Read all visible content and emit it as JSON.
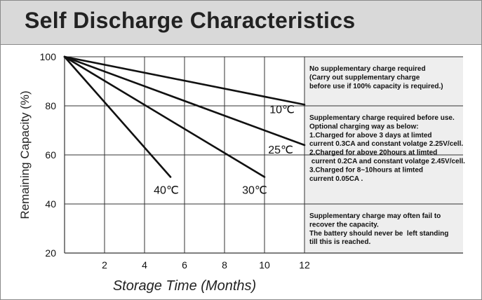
{
  "title": "Self Discharge Characteristics",
  "chart_data": {
    "type": "line",
    "xlabel": "Storage Time (Months)",
    "ylabel": "Remaining Capacity (%)",
    "xlim": [
      0,
      12
    ],
    "ylim": [
      20,
      100
    ],
    "x_ticks": [
      "2",
      "4",
      "6",
      "8",
      "10",
      "12"
    ],
    "y_ticks": [
      "100",
      "80",
      "60",
      "40",
      "20"
    ],
    "grid": true,
    "series": [
      {
        "name": "10℃",
        "x": [
          0,
          12
        ],
        "y": [
          100,
          80.5
        ]
      },
      {
        "name": "25℃",
        "x": [
          0,
          12
        ],
        "y": [
          100,
          64
        ]
      },
      {
        "name": "30℃",
        "x": [
          0,
          10
        ],
        "y": [
          100,
          51
        ]
      },
      {
        "name": "40℃",
        "x": [
          0,
          5.3
        ],
        "y": [
          100,
          51
        ]
      }
    ],
    "annotations": [
      {
        "band": [
          80,
          100
        ],
        "lines": [
          "No supplementary charge required",
          "(Carry out supplementary charge",
          "before use if 100% capacity is required.)"
        ]
      },
      {
        "band": [
          40,
          80
        ],
        "lines": [
          "Supplementary charge required before use.",
          "Optional charging way as below:",
          "1.Charged for above 3 days at limted",
          "current 0.3CA and constant volatge 2.25V/cell.",
          "2.Charged for above 20hours at limted",
          " current 0.2CA and constant volatge 2.45V/cell.",
          "3.Charged for 8~10hours at limted",
          "current 0.05CA ."
        ]
      },
      {
        "band": [
          20,
          40
        ],
        "lines": [
          "Supplementary charge may often fail to",
          "recover the capacity.",
          "The battery should never be  left standing",
          "till this is reached."
        ]
      }
    ]
  },
  "colors": {
    "title_bar": "#d9d9d9",
    "annotation_panel": "#eeeeee",
    "lines": "#111111",
    "grid": "#333333"
  }
}
